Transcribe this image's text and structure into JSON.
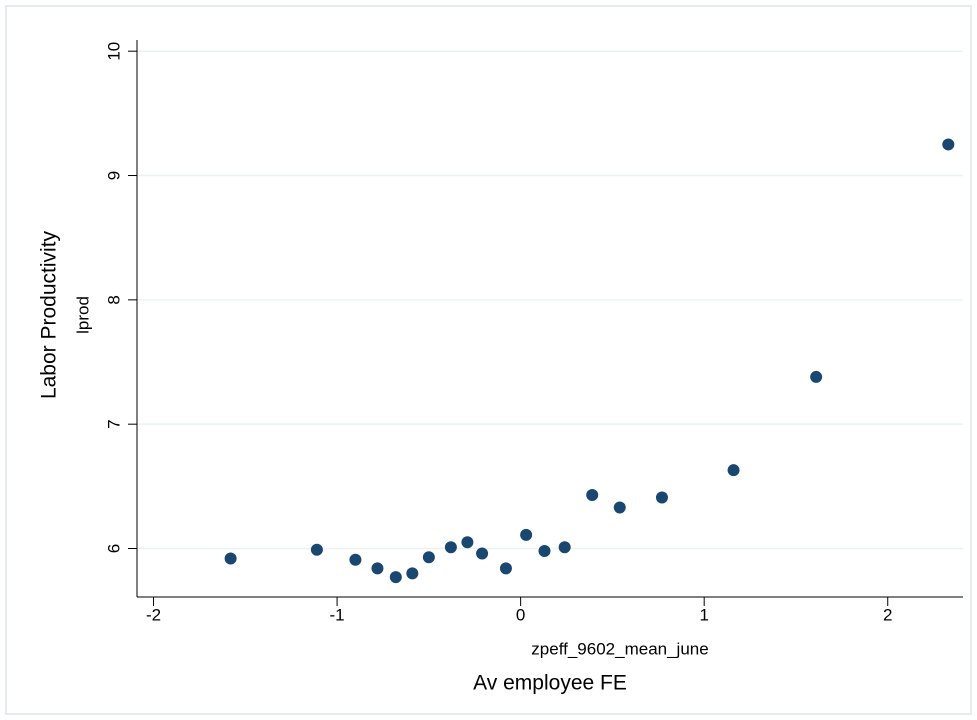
{
  "chart_data": {
    "type": "scatter",
    "x_title": "zpeff_9602_mean_june",
    "x_subtitle": "Av employee FE",
    "y_title": "Labor Productivity",
    "y_subtitle": "lprod",
    "xlim": [
      -2.09,
      2.41
    ],
    "ylim": [
      5.61,
      10.09
    ],
    "xticks": [
      -2,
      -1,
      0,
      1,
      2
    ],
    "yticks": [
      6,
      7,
      8,
      9,
      10
    ],
    "grid": true,
    "series": [
      {
        "name": "lprod",
        "color": "#1a476f",
        "x": [
          -1.58,
          -1.11,
          -0.9,
          -0.78,
          -0.68,
          -0.59,
          -0.5,
          -0.38,
          -0.29,
          -0.21,
          -0.08,
          0.03,
          0.13,
          0.24,
          0.39,
          0.54,
          0.77,
          1.16,
          1.61,
          2.33
        ],
        "values": [
          5.92,
          5.99,
          5.91,
          5.84,
          5.77,
          5.8,
          5.93,
          6.01,
          6.05,
          5.96,
          5.84,
          6.11,
          5.98,
          6.01,
          6.43,
          6.33,
          6.41,
          6.63,
          7.38,
          9.25
        ]
      }
    ]
  }
}
